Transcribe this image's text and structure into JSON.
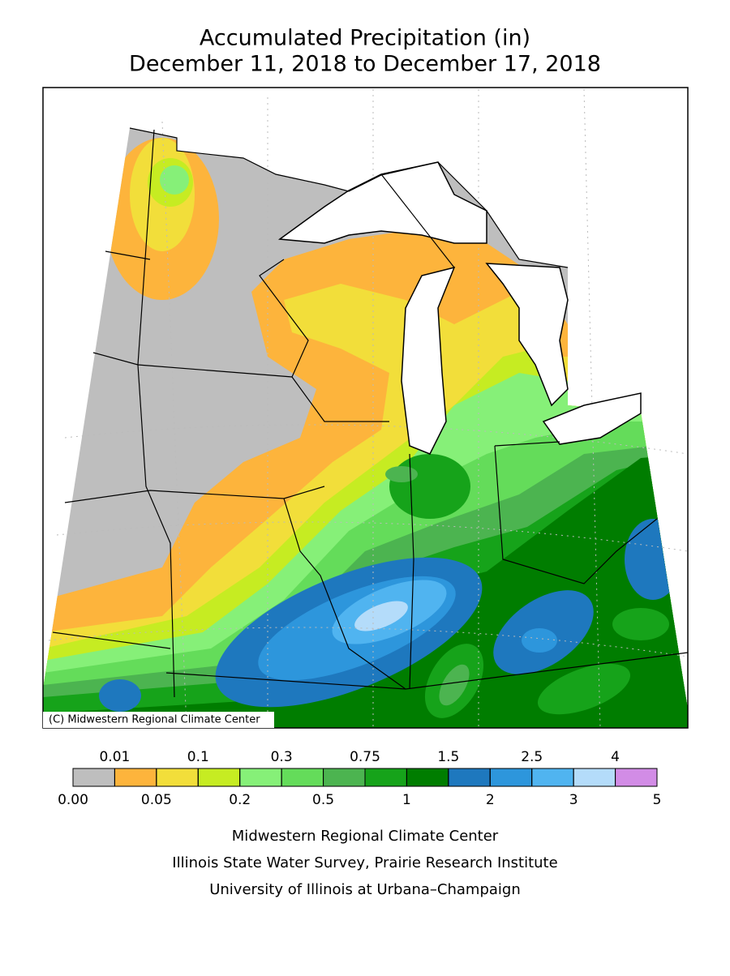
{
  "title": [
    "Accumulated Precipitation (in)",
    "December 11, 2018 to December 17, 2018"
  ],
  "map": {
    "copyright": "(C) Midwestern Regional Climate Center"
  },
  "legend": {
    "bounds": [
      {
        "value": 0,
        "label": "0.00"
      },
      0.01,
      0.05,
      0.1,
      0.2,
      0.3,
      0.5,
      0.75,
      1,
      1.5,
      2,
      2.5,
      3,
      4,
      5
    ],
    "colors": [
      "#bebebe",
      "#fdb43c",
      "#f2de3a",
      "#c6ec22",
      "#86f078",
      "#64dc5a",
      "#4cb450",
      "#16a31a",
      "#007d00",
      "#1e78be",
      "#2d96dc",
      "#50b4f0",
      "#b4dcfa",
      "#d28ce6"
    ]
  },
  "footer": [
    "Midwestern Regional Climate Center",
    "Illinois State Water Survey, Prairie Research Institute",
    "University of Illinois at Urbana–Champaign"
  ]
}
